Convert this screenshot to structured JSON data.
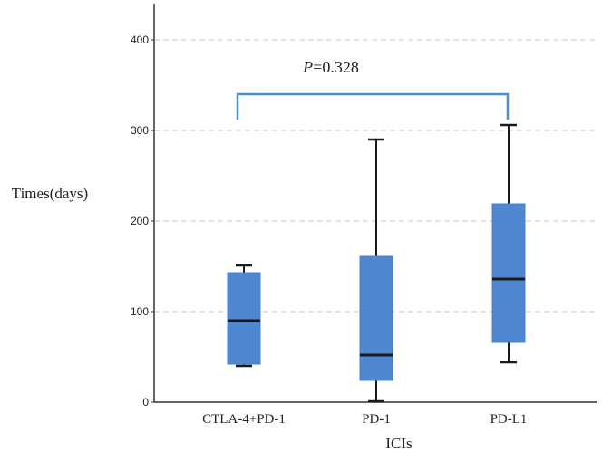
{
  "chart_data": {
    "type": "box",
    "title": "",
    "xlabel": "ICIs",
    "ylabel": "Times(days)",
    "ylim": [
      0,
      440
    ],
    "yticks": [
      0,
      100,
      200,
      300,
      400
    ],
    "grid": "horizontal-dashed",
    "categories": [
      "CTLA-4+PD-1",
      "PD-1",
      "PD-L1"
    ],
    "boxes": [
      {
        "category": "CTLA-4+PD-1",
        "min": 40,
        "q1": 42,
        "median": 90,
        "q3": 143,
        "max": 151
      },
      {
        "category": "PD-1",
        "min": 1,
        "q1": 24,
        "median": 52,
        "q3": 161,
        "max": 290
      },
      {
        "category": "PD-L1",
        "min": 44,
        "q1": 66,
        "median": 136,
        "q3": 219,
        "max": 306
      }
    ],
    "annotation": {
      "p_symbol": "P",
      "p_text": "=0.328",
      "from": "CTLA-4+PD-1",
      "to": "PD-L1",
      "bracket_value": 340
    },
    "colors": {
      "box_fill": "#4f88d1",
      "box_edge": "#4a80c8",
      "whisker": "#1a1a1a",
      "median": "#1a1a1a",
      "bracket": "#4a90d0",
      "grid": "#c8c8c8",
      "axis": "#333333"
    }
  }
}
